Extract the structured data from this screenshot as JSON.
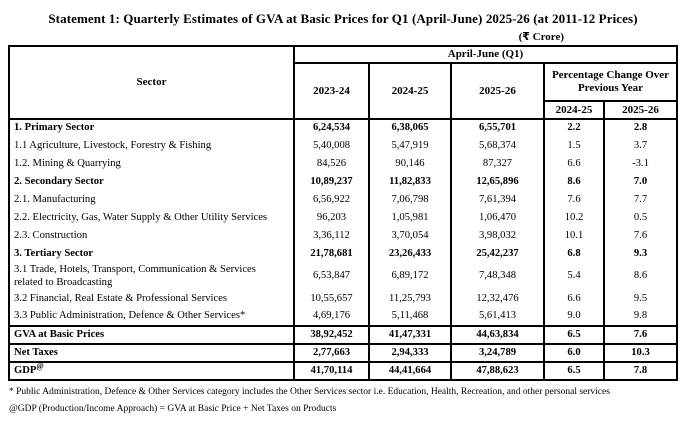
{
  "title": "Statement 1: Quarterly Estimates of GVA at Basic Prices for Q1 (April-June) 2025-26 (at 2011-12 Prices)",
  "unit_note": "(₹ Crore)",
  "table": {
    "sector_header": "Sector",
    "group_header": "April-June (Q1)",
    "year_headers": [
      "2023-24",
      "2024-25",
      "2025-26"
    ],
    "pct_header": "Percentage Change Over Previous Year",
    "pct_year_headers": [
      "2024-25",
      "2025-26"
    ],
    "rows": [
      {
        "label": "1. Primary Sector",
        "values": [
          "6,24,534",
          "6,38,065",
          "6,55,701",
          "2.2",
          "2.8"
        ]
      },
      {
        "label": "1.1  Agriculture, Livestock, Forestry & Fishing",
        "values": [
          "5,40,008",
          "5,47,919",
          "5,68,374",
          "1.5",
          "3.7"
        ]
      },
      {
        "label": "1.2. Mining & Quarrying",
        "values": [
          "84,526",
          "90,146",
          "87,327",
          "6.6",
          "-3.1"
        ]
      },
      {
        "label": "2. Secondary Sector",
        "values": [
          "10,89,237",
          "11,82,833",
          "12,65,896",
          "8.6",
          "7.0"
        ]
      },
      {
        "label": "2.1. Manufacturing",
        "values": [
          "6,56,922",
          "7,06,798",
          "7,61,394",
          "7.6",
          "7.7"
        ]
      },
      {
        "label": "2.2. Electricity, Gas, Water Supply & Other Utility Services",
        "values": [
          "96,203",
          "1,05,981",
          "1,06,470",
          "10.2",
          "0.5"
        ]
      },
      {
        "label": "2.3. Construction",
        "values": [
          "3,36,112",
          "3,70,054",
          "3,98,032",
          "10.1",
          "7.6"
        ]
      },
      {
        "label": "3. Tertiary Sector",
        "values": [
          "21,78,681",
          "23,26,433",
          "25,42,237",
          "6.8",
          "9.3"
        ]
      },
      {
        "label": "3.1 Trade, Hotels, Transport, Communication & Services related to Broadcasting",
        "values": [
          "6,53,847",
          "6,89,172",
          "7,48,348",
          "5.4",
          "8.6"
        ]
      },
      {
        "label": "3.2 Financial, Real Estate & Professional Services",
        "values": [
          "10,55,657",
          "11,25,793",
          "12,32,476",
          "6.6",
          "9.5"
        ]
      },
      {
        "label": "3.3 Public Administration, Defence & Other Services*",
        "values": [
          "4,69,176",
          "5,11,468",
          "5,61,413",
          "9.0",
          "9.8"
        ]
      },
      {
        "label": "GVA at Basic Prices",
        "values": [
          "38,92,452",
          "41,47,331",
          "44,63,834",
          "6.5",
          "7.6"
        ]
      },
      {
        "label": "Net Taxes",
        "values": [
          "2,77,663",
          "2,94,333",
          "3,24,789",
          "6.0",
          "10.3"
        ]
      },
      {
        "label": "GDP",
        "sup": "@",
        "values": [
          "41,70,114",
          "44,41,664",
          "47,88,623",
          "6.5",
          "7.8"
        ]
      }
    ]
  },
  "footnotes": {
    "services": "* Public Administration, Defence & Other Services category includes the Other Services sector i.e. Education, Health, Recreation, and other personal services",
    "gdp": "@GDP (Production/Income Approach) = GVA at Basic Price + Net Taxes on Products"
  }
}
